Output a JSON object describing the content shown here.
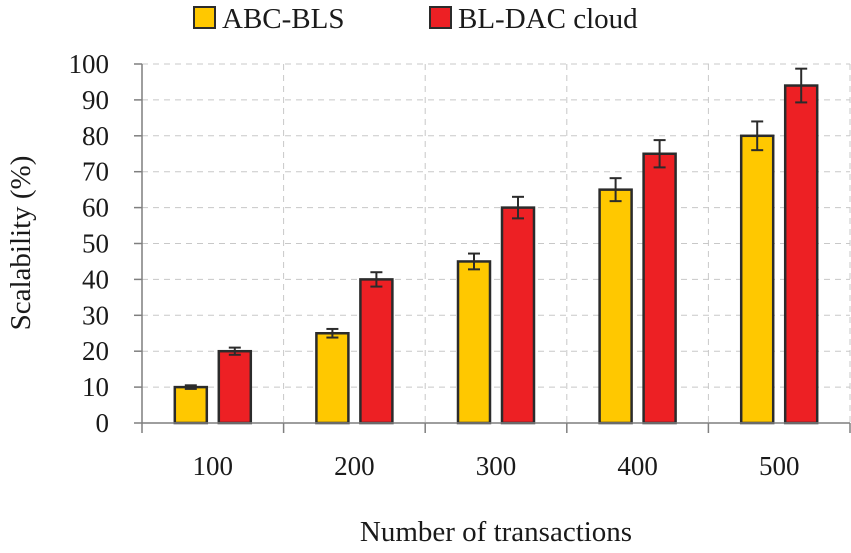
{
  "chart_data": {
    "type": "bar",
    "categories": [
      "100",
      "200",
      "300",
      "400",
      "500"
    ],
    "series": [
      {
        "name": "ABC-BLS",
        "color": "#ffc800",
        "values": [
          10,
          25,
          45,
          65,
          80
        ],
        "errors": [
          0.5,
          1.2,
          2.2,
          3.2,
          4.0
        ]
      },
      {
        "name": "BL-DAC cloud",
        "color": "#ed2024",
        "values": [
          20,
          40,
          60,
          75,
          94
        ],
        "errors": [
          1.0,
          2.0,
          3.0,
          3.8,
          4.7
        ]
      }
    ],
    "xlabel": "Number of transactions",
    "ylabel": "Scalability (%)",
    "ylim": [
      0,
      100
    ],
    "yticks": [
      "0",
      "10",
      "20",
      "30",
      "40",
      "50",
      "60",
      "70",
      "80",
      "90",
      "100"
    ],
    "grid": true,
    "legend_position": "top"
  }
}
